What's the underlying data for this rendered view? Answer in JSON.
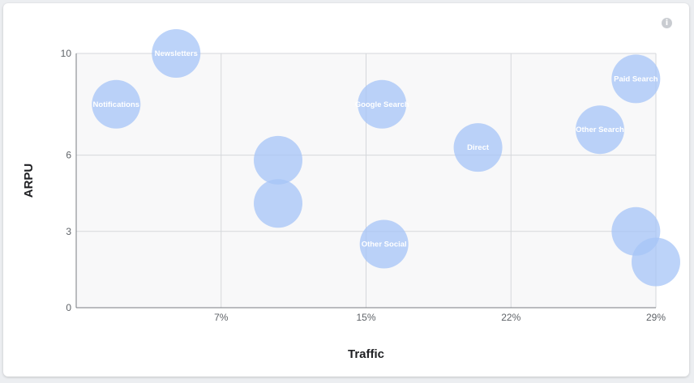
{
  "widget": {
    "info_icon": "info-icon",
    "info_glyph": "i"
  },
  "chart_data": {
    "type": "scatter",
    "subtype": "bubble",
    "title": "",
    "xlabel": "Traffic",
    "ylabel": "ARPU",
    "xlim": [
      0,
      29
    ],
    "ylim": [
      0,
      10
    ],
    "x_ticks": [
      {
        "value": 7.25,
        "label": "7%"
      },
      {
        "value": 14.5,
        "label": "15%"
      },
      {
        "value": 21.75,
        "label": "22%"
      },
      {
        "value": 29,
        "label": "29%"
      }
    ],
    "y_ticks": [
      {
        "value": 0,
        "label": "0"
      },
      {
        "value": 3,
        "label": "3"
      },
      {
        "value": 6,
        "label": "6"
      },
      {
        "value": 10,
        "label": "10"
      }
    ],
    "grid": true,
    "bubble_color": "#a6c4f7",
    "bubble_opacity": 0.75,
    "plot_background": "#f8f8f9",
    "points": [
      {
        "label": "Notifications",
        "x": 2.0,
        "y": 8.0
      },
      {
        "label": "Newsletters",
        "x": 5.0,
        "y": 10.0
      },
      {
        "label": "",
        "x": 10.1,
        "y": 5.8
      },
      {
        "label": "",
        "x": 10.1,
        "y": 4.1
      },
      {
        "label": "Google Search",
        "x": 15.3,
        "y": 8.0
      },
      {
        "label": "Other Social",
        "x": 15.4,
        "y": 2.5
      },
      {
        "label": "Direct",
        "x": 20.1,
        "y": 6.3
      },
      {
        "label": "Other Search",
        "x": 26.2,
        "y": 7.0
      },
      {
        "label": "Paid Search",
        "x": 28.0,
        "y": 9.0
      },
      {
        "label": "",
        "x": 28.0,
        "y": 3.0
      },
      {
        "label": "",
        "x": 29.0,
        "y": 1.8
      }
    ]
  }
}
